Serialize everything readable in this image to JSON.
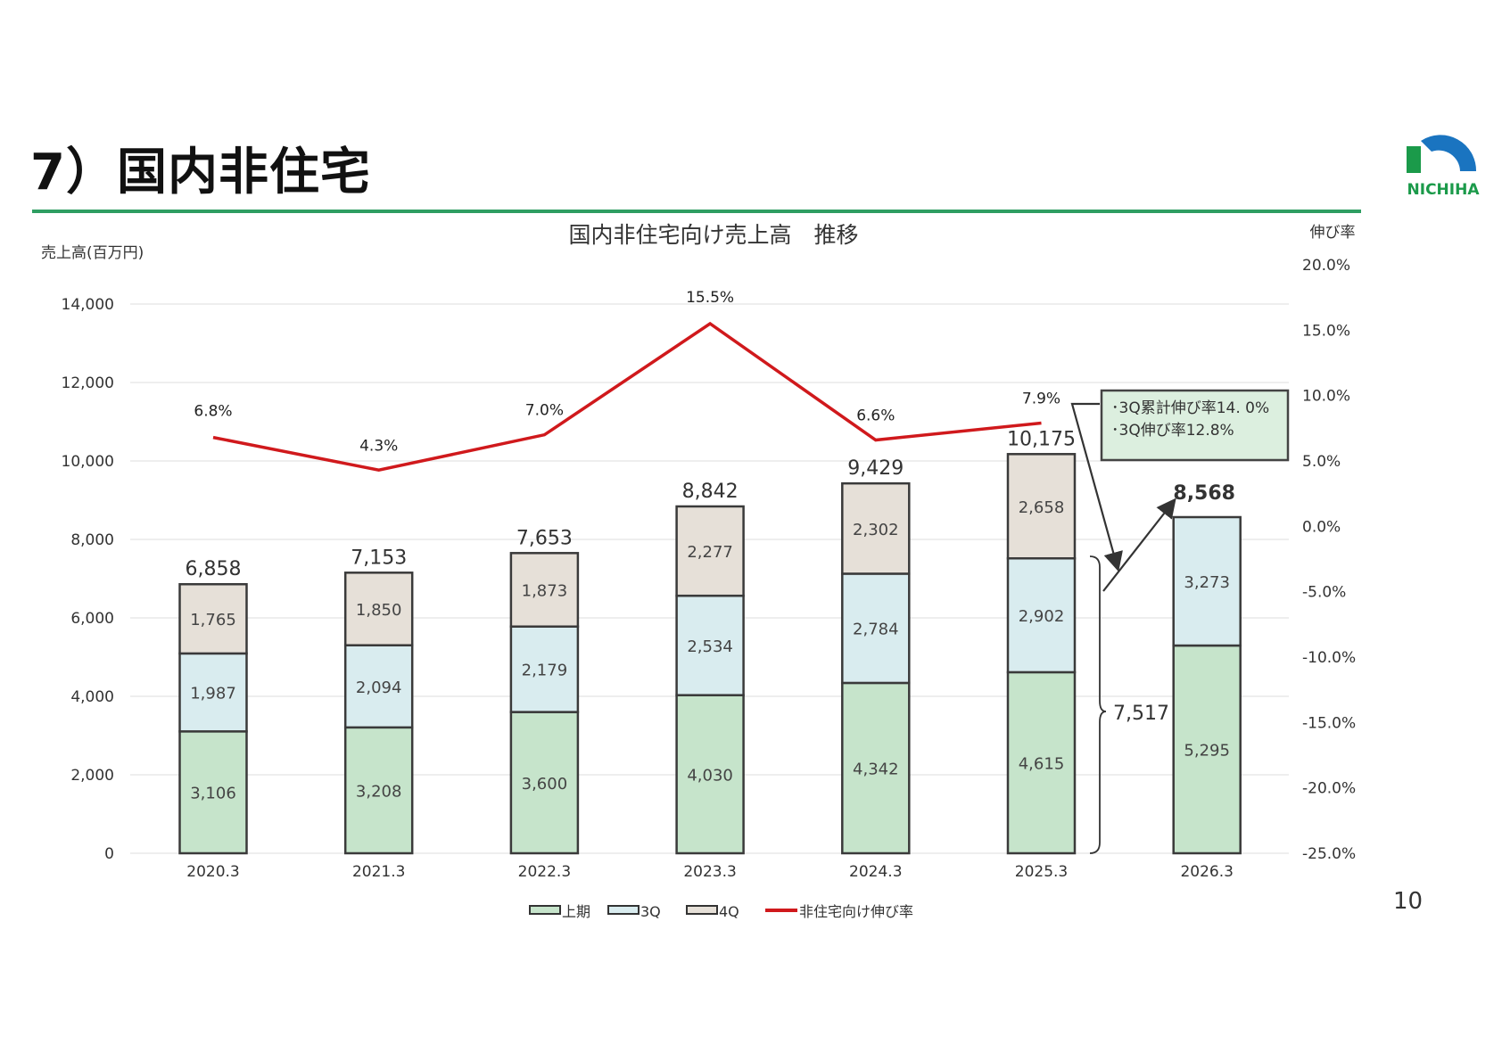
{
  "page": {
    "title": "7）国内非住宅",
    "page_number": "10",
    "logo_text": "NICHIHA"
  },
  "chart_data": {
    "type": "bar",
    "stacked": true,
    "title": "国内非住宅向け売上高　推移",
    "ylabel": "売上高(百万円)",
    "y2label": "伸び率",
    "categories": [
      "2020.3",
      "2021.3",
      "2022.3",
      "2023.3",
      "2024.3",
      "2025.3",
      "2026.3"
    ],
    "ylim": [
      0,
      14000
    ],
    "yticks": [
      "0",
      "2,000",
      "4,000",
      "6,000",
      "8,000",
      "10,000",
      "12,000",
      "14,000"
    ],
    "y2lim": [
      -25,
      20
    ],
    "y2ticks": [
      "-25.0%",
      "-20.0%",
      "-15.0%",
      "-10.0%",
      "-5.0%",
      "0.0%",
      "5.0%",
      "10.0%",
      "15.0%",
      "20.0%"
    ],
    "grid": true,
    "legend_position": "bottom",
    "series": [
      {
        "name": "上期",
        "values": [
          3106,
          3208,
          3600,
          4030,
          4342,
          4615,
          5295
        ],
        "labels": [
          "3,106",
          "3,208",
          "3,600",
          "4,030",
          "4,342",
          "4,615",
          "5,295"
        ],
        "color": "#c6e4cb"
      },
      {
        "name": "3Q",
        "values": [
          1987,
          2094,
          2179,
          2534,
          2784,
          2902,
          3273
        ],
        "labels": [
          "1,987",
          "2,094",
          "2,179",
          "2,534",
          "2,784",
          "2,902",
          "3,273"
        ],
        "color": "#d9ecef"
      },
      {
        "name": "4Q",
        "values": [
          1765,
          1850,
          1873,
          2277,
          2302,
          2658,
          null
        ],
        "labels": [
          "1,765",
          "1,850",
          "1,873",
          "2,277",
          "2,302",
          "2,658",
          ""
        ],
        "color": "#e6e0d8"
      }
    ],
    "totals": [
      "6,858",
      "7,153",
      "7,653",
      "8,842",
      "9,429",
      "10,175",
      "8,568"
    ],
    "line": {
      "name": "非住宅向け伸び率",
      "axis": "right",
      "values": [
        6.8,
        4.3,
        7.0,
        15.5,
        6.6,
        7.9
      ],
      "labels": [
        "6.8%",
        "4.3%",
        "7.0%",
        "15.5%",
        "6.6%",
        "7.9%"
      ],
      "color": "#d0191c"
    },
    "annotations": {
      "box_lines": [
        "･3Q累計伸び率14. 0%",
        "･3Q伸び率12.8%"
      ],
      "box_color": "#dcefdf",
      "brace_label": "7,517"
    }
  }
}
